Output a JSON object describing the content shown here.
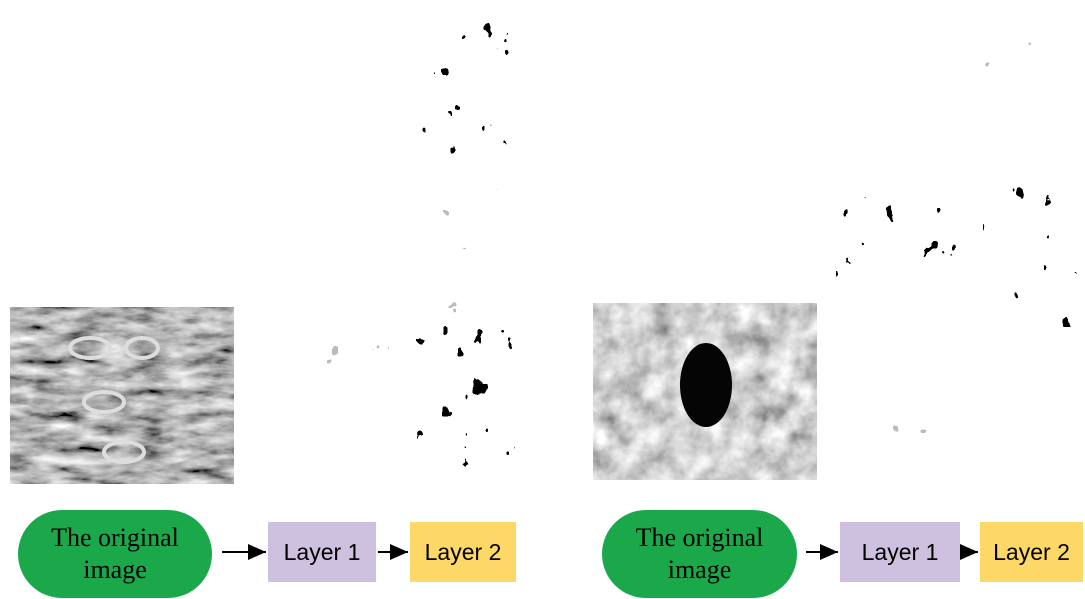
{
  "panels": [
    {
      "original_label": "The original image",
      "layer1_label": "Layer 1",
      "layer2_label": "Layer 2"
    },
    {
      "original_label": "The original image",
      "layer1_label": "Layer 1",
      "layer2_label": "Layer 2"
    }
  ]
}
